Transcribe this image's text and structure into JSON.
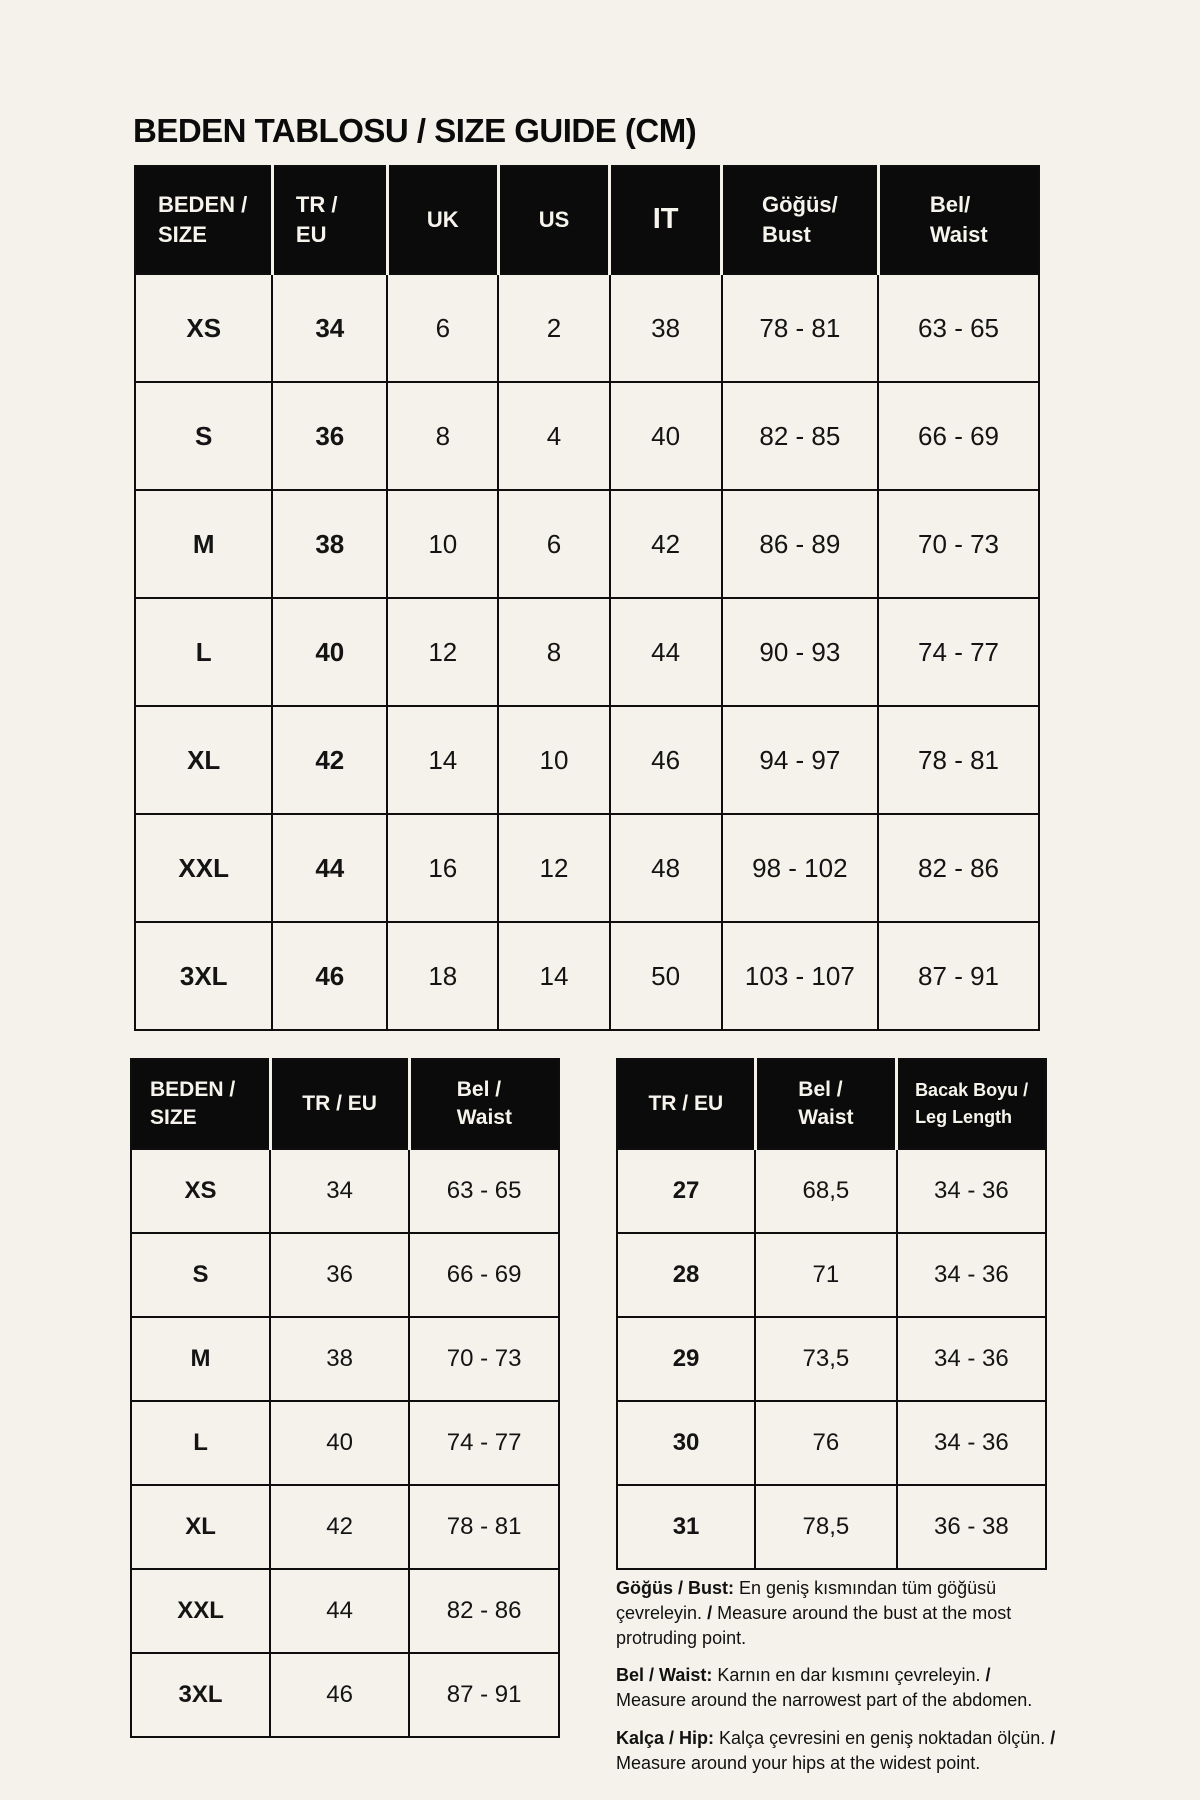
{
  "page": {
    "title": "BEDEN TABLOSU / SIZE GUIDE (CM)",
    "background_color": "#f4f2ea",
    "header_color": "#0b0b0b",
    "border_color": "#0e0e0e"
  },
  "main_table": {
    "headers": [
      "BEDEN /\nSIZE",
      "TR /\nEU",
      "UK",
      "US",
      "IT",
      "Göğüs/\nBust",
      "Bel/\nWaist"
    ],
    "rows": [
      [
        "XS",
        "34",
        "6",
        "2",
        "38",
        "78 - 81",
        "63 - 65"
      ],
      [
        "S",
        "36",
        "8",
        "4",
        "40",
        "82 - 85",
        "66 - 69"
      ],
      [
        "M",
        "38",
        "10",
        "6",
        "42",
        "86 - 89",
        "70 - 73"
      ],
      [
        "L",
        "40",
        "12",
        "8",
        "44",
        "90 - 93",
        "74 - 77"
      ],
      [
        "XL",
        "42",
        "14",
        "10",
        "46",
        "94 - 97",
        "78 - 81"
      ],
      [
        "XXL",
        "44",
        "16",
        "12",
        "48",
        "98 - 102",
        "82 - 86"
      ],
      [
        "3XL",
        "46",
        "18",
        "14",
        "50",
        "103 - 107",
        "87 - 91"
      ]
    ]
  },
  "waist_table": {
    "headers": [
      "BEDEN /\nSIZE",
      "TR / EU",
      "Bel /\nWaist"
    ],
    "rows": [
      [
        "XS",
        "34",
        "63 - 65"
      ],
      [
        "S",
        "36",
        "66 - 69"
      ],
      [
        "M",
        "38",
        "70 - 73"
      ],
      [
        "L",
        "40",
        "74 - 77"
      ],
      [
        "XL",
        "42",
        "78 - 81"
      ],
      [
        "XXL",
        "44",
        "82 - 86"
      ],
      [
        "3XL",
        "46",
        "87 - 91"
      ]
    ]
  },
  "leg_table": {
    "headers": [
      "TR / EU",
      "Bel /\nWaist",
      "Bacak Boyu /\nLeg Length"
    ],
    "rows": [
      [
        "27",
        "68,5",
        "34 - 36"
      ],
      [
        "28",
        "71",
        "34 - 36"
      ],
      [
        "29",
        "73,5",
        "34 - 36"
      ],
      [
        "30",
        "76",
        "34 - 36"
      ],
      [
        "31",
        "78,5",
        "36 - 38"
      ]
    ]
  },
  "notes": [
    {
      "label": "Göğüs / Bust:",
      "tr": "En geniş kısmından tüm göğüsü çevreleyin.",
      "sep": "/",
      "en": "Measure around the bust at the most protruding point."
    },
    {
      "label": "Bel / Waist:",
      "tr": "Karnın en dar kısmını çevreleyin.",
      "sep": "/",
      "en": "Measure around the narrowest part of the abdomen."
    },
    {
      "label": "Kalça / Hip:",
      "tr": "Kalça çevresini en geniş noktadan ölçün.",
      "sep": "/",
      "en": "Measure around your hips at the widest point."
    }
  ]
}
